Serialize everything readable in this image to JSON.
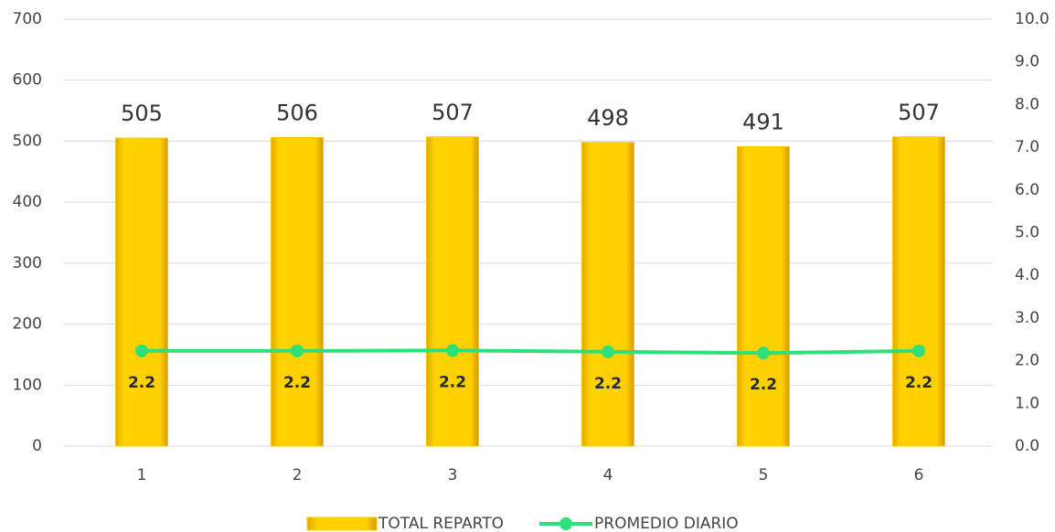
{
  "chart_data": {
    "type": "bar",
    "categories": [
      "1",
      "2",
      "3",
      "4",
      "5",
      "6"
    ],
    "series": [
      {
        "name": "TOTAL REPARTO",
        "type": "bar",
        "color": "#ffc800",
        "values": [
          505,
          506,
          507,
          498,
          491,
          507
        ]
      },
      {
        "name": "PROMEDIO DIARIO",
        "type": "line",
        "axis": "y2",
        "color": "#2ee07a",
        "values": [
          2.23,
          2.23,
          2.24,
          2.21,
          2.18,
          2.23
        ],
        "value_labels": [
          "2.2",
          "2.2",
          "2.2",
          "2.2",
          "2.2",
          "2.2"
        ]
      }
    ],
    "ylim": [
      0,
      700
    ],
    "yticks": [
      0,
      100,
      200,
      300,
      400,
      500,
      600,
      700
    ],
    "y2lim": [
      0,
      10
    ],
    "y2ticks": [
      {
        "value": 0,
        "label": "0.0"
      },
      {
        "value": 1,
        "label": "1.0"
      },
      {
        "value": 2,
        "label": "2.0"
      },
      {
        "value": 3,
        "label": "3.0"
      },
      {
        "value": 4,
        "label": "4.0"
      },
      {
        "value": 5,
        "label": "5.0"
      },
      {
        "value": 6,
        "label": "6.0"
      },
      {
        "value": 7,
        "label": "7.0"
      },
      {
        "value": 8,
        "label": "8.0"
      },
      {
        "value": 9,
        "label": "9.0"
      },
      {
        "value": 10,
        "label": "10.0"
      }
    ],
    "grid": true,
    "legend": "bottom"
  }
}
